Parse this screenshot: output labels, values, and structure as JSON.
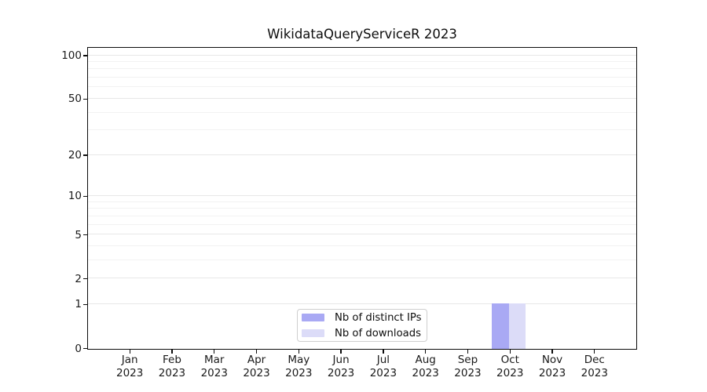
{
  "title": "WikidataQueryServiceR 2023",
  "legend": {
    "items": [
      {
        "label": "Nb of distinct IPs",
        "color": "#a9a9f4"
      },
      {
        "label": "Nb of downloads",
        "color": "#dcdcf8"
      }
    ]
  },
  "chart_data": {
    "type": "bar",
    "title": "WikidataQueryServiceR 2023",
    "categories": [
      "Jan 2023",
      "Feb 2023",
      "Mar 2023",
      "Apr 2023",
      "May 2023",
      "Jun 2023",
      "Jul 2023",
      "Aug 2023",
      "Sep 2023",
      "Oct 2023",
      "Nov 2023",
      "Dec 2023"
    ],
    "series": [
      {
        "name": "Nb of distinct IPs",
        "color": "#a9a9f4",
        "values": [
          0,
          0,
          0,
          0,
          0,
          0,
          0,
          0,
          0,
          1,
          0,
          0
        ]
      },
      {
        "name": "Nb of downloads",
        "color": "#dcdcf8",
        "values": [
          0,
          0,
          0,
          0,
          0,
          0,
          0,
          0,
          0,
          1,
          0,
          0
        ]
      }
    ],
    "xlabel": "",
    "ylabel": "",
    "y_scale": "log1p",
    "y_major_ticks": [
      0,
      1,
      2,
      5,
      10,
      20,
      50,
      100
    ],
    "y_minor_ticks": [
      3,
      4,
      6,
      7,
      8,
      9,
      30,
      40,
      60,
      70,
      80,
      90
    ],
    "ylim": [
      0,
      113
    ],
    "grid": "horizontal",
    "legend_position": "inside-bottom-center",
    "grid_colors": {
      "power10_major": "#cbcbcb",
      "major": "#e7e7e7",
      "minor": "#f2f2f2"
    }
  }
}
